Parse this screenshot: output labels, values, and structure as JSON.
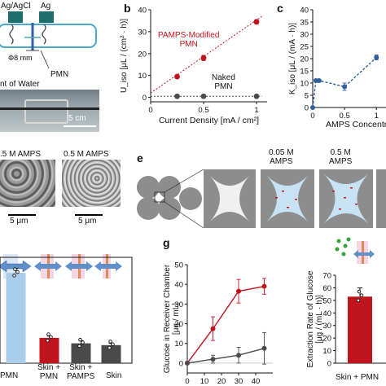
{
  "panel_a": {
    "label_ag_agcl": "Ag/AgCl",
    "label_ag": "Ag",
    "label_phi": "Φ8 mm",
    "label_pmn": "PMN",
    "label_water": "nt of Water",
    "scale": "5 cm"
  },
  "panel_b": {
    "letter": "b",
    "legend_pamps": "PAMPS-Modified\nPMN",
    "legend_naked": "Naked\nPMN"
  },
  "panel_c": {
    "letter": "c",
    "xlabel": "AMPS Concentr"
  },
  "panel_d": {
    "label_left": ".5 M AMPS",
    "label_right": "0.5 M AMPS",
    "scale_left": "5 μm",
    "scale_right": "5 μm"
  },
  "panel_e": {
    "letter": "e",
    "label_005": "0.05 M\nAMPS",
    "label_05": "0.5 M\nAMPS"
  },
  "panel_f": {
    "cat_pmn": "PMN",
    "cat_skin_pmn": "Skin +\nPMN",
    "cat_skin_pamps": "Skin +\nPAMPS",
    "cat_skin": "Skin"
  },
  "panel_g": {
    "letter": "g"
  },
  "panel_h": {
    "ylabel": "Extraction Rate of Glucose\n[μg / (mL · h)]",
    "cat": "Skin + PMN"
  },
  "colors": {
    "red": "#c0141c",
    "blue": "#2f5f9e",
    "light_blue": "#a9cdea",
    "dark_gray": "#4a4a4a",
    "gray": "#7a7a7a"
  },
  "chart_data": [
    {
      "id": "b",
      "type": "scatter",
      "xlabel": "Current Density [mA / cm²]",
      "ylabel": "U_iso [μL / (cm² · h)]",
      "xlim": [
        0,
        1.1
      ],
      "ylim": [
        -2,
        40
      ],
      "xticks": [
        0,
        0.5,
        1
      ],
      "yticks": [
        0,
        10,
        20,
        30,
        40
      ],
      "series": [
        {
          "name": "PAMPS-Modified PMN",
          "x": [
            0.25,
            0.5,
            1
          ],
          "y": [
            9.5,
            18,
            34.5
          ],
          "err": [
            0.8,
            1.2,
            1.0
          ],
          "color": "#c0141c",
          "trend": [
            [
              0,
              2
            ],
            [
              1.05,
              37
            ]
          ]
        },
        {
          "name": "Naked PMN",
          "x": [
            0.25,
            0.5,
            1
          ],
          "y": [
            0.5,
            0.5,
            0.5
          ],
          "err": [
            0,
            0,
            0
          ],
          "color": "#4a4a4a",
          "trend": [
            [
              0,
              0.5
            ],
            [
              1.05,
              0.5
            ]
          ]
        }
      ]
    },
    {
      "id": "c",
      "type": "line",
      "xlabel": "AMPS Concentr",
      "ylabel": "K_iso [μL / (mA · h)]",
      "xlim": [
        0,
        1.15
      ],
      "ylim": [
        0,
        40
      ],
      "xticks": [
        0,
        0.5,
        1
      ],
      "yticks": [
        0,
        5,
        10,
        15,
        20,
        25,
        30,
        35,
        40
      ],
      "series": [
        {
          "name": "",
          "x": [
            0,
            0.05,
            0.1,
            0.5,
            1
          ],
          "y": [
            0,
            11,
            11,
            8.5,
            20.5
          ],
          "err": [
            0,
            0.5,
            0.5,
            1.5,
            1.0
          ],
          "color": "#2f5f9e"
        }
      ]
    },
    {
      "id": "f",
      "type": "bar",
      "categories": [
        "PMN",
        "Skin +\nPMN",
        "Skin +\nPAMPS",
        "Skin"
      ],
      "values": [
        100,
        28,
        22,
        20
      ],
      "errors": [
        5,
        2,
        3,
        2
      ],
      "colors": [
        "#a9cdea",
        "#c0141c",
        "#4a4a4a",
        "#4a4a4a"
      ],
      "ylim": [
        0,
        110
      ]
    },
    {
      "id": "g",
      "type": "line",
      "xlabel": "Time [min]",
      "ylabel": "Glucose in Receiver Chamber\n[μg / mL]",
      "xlim": [
        0,
        50
      ],
      "ylim": [
        -5,
        50
      ],
      "xticks": [
        0,
        10,
        20,
        30,
        40
      ],
      "yticks": [
        0,
        10,
        20,
        30,
        40,
        50
      ],
      "series": [
        {
          "name": "",
          "x": [
            0,
            15,
            30,
            45
          ],
          "y": [
            0,
            17.5,
            36.5,
            39
          ],
          "err": [
            0,
            6,
            6,
            4
          ],
          "color": "#c0141c"
        },
        {
          "name": "",
          "x": [
            0,
            15,
            30,
            45
          ],
          "y": [
            0,
            2,
            4,
            7.5
          ],
          "err": [
            0,
            2,
            4,
            8
          ],
          "color": "#4a4a4a"
        }
      ]
    },
    {
      "id": "h",
      "type": "bar",
      "categories": [
        "Skin + PMN"
      ],
      "values": [
        53
      ],
      "errors": [
        7
      ],
      "colors": [
        "#c0141c"
      ],
      "ylim": [
        0,
        70
      ],
      "yticks": [
        0,
        10,
        20,
        30,
        40,
        50,
        60,
        70
      ]
    }
  ]
}
